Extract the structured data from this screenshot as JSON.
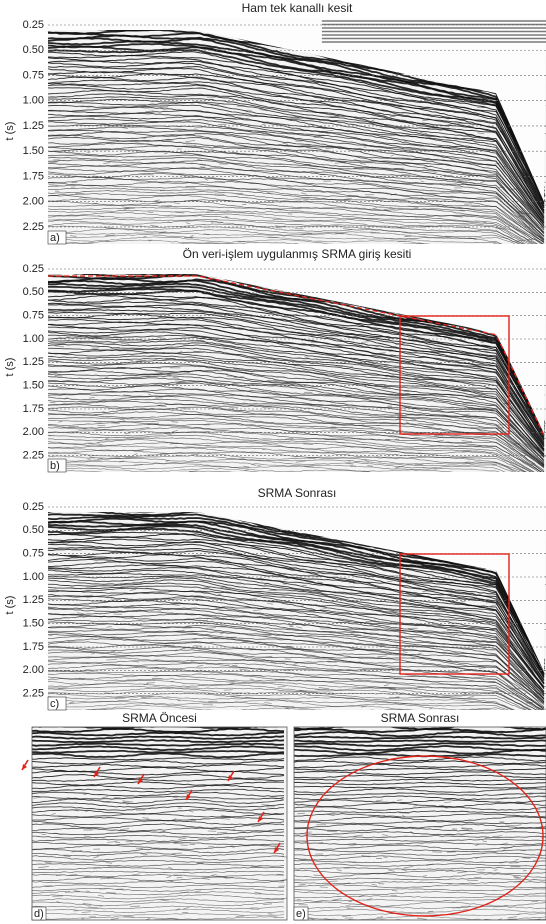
{
  "figure": {
    "panels": [
      {
        "title": "Ham tek kanallı kesit",
        "letter": "a)",
        "axis_label": "t (s)",
        "ticks": [
          "0.25",
          "0.50",
          "0.75",
          "1.00",
          "1.25",
          "1.50",
          "1.75",
          "2.00",
          "2.25"
        ]
      },
      {
        "title": "Ön veri-işlem uygulanmış SRMA giriş kesiti",
        "letter": "b)",
        "axis_label": "t (s)",
        "ticks": [
          "0.25",
          "0.50",
          "0.75",
          "1.00",
          "1.25",
          "1.50",
          "1.75",
          "2.00",
          "2.25"
        ]
      },
      {
        "title": "SRMA Sonrası",
        "letter": "c)",
        "axis_label": "t (s)",
        "ticks": [
          "0.25",
          "0.50",
          "0.75",
          "1.00",
          "1.25",
          "1.50",
          "1.75",
          "2.00",
          "2.25"
        ]
      },
      {
        "title": "SRMA Öncesi",
        "letter": "d)"
      },
      {
        "title": "SRMA Sonrası",
        "letter": "e)"
      }
    ]
  }
}
